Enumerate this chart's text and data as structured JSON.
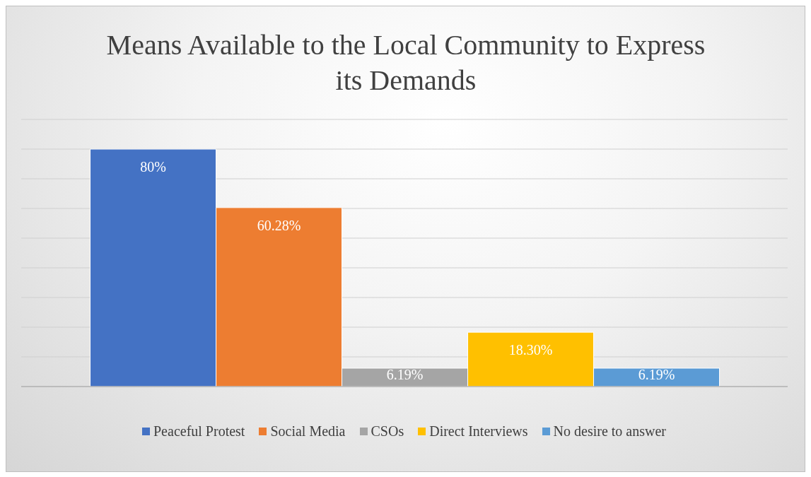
{
  "chart_data": {
    "type": "bar",
    "title": "Means Available to the Local Community to Express its Demands",
    "categories": [
      null
    ],
    "series": [
      {
        "name": "Peaceful Protest",
        "color": "#4472c4",
        "values": [
          80
        ],
        "value_labels": [
          "80%"
        ]
      },
      {
        "name": "Social Media",
        "color": "#ed7d31",
        "values": [
          60.28
        ],
        "value_labels": [
          "60.28%"
        ]
      },
      {
        "name": "CSOs",
        "color": "#a5a5a5",
        "values": [
          6.19
        ],
        "value_labels": [
          "6.19%"
        ]
      },
      {
        "name": "Direct Interviews",
        "color": "#ffc000",
        "values": [
          18.3
        ],
        "value_labels": [
          "18.30%"
        ]
      },
      {
        "name": "No desire to answer",
        "color": "#5b9bd5",
        "values": [
          6.19
        ],
        "value_labels": [
          "6.19%"
        ]
      }
    ],
    "ylim": [
      0,
      90
    ],
    "grid": "y",
    "legend": "bottom"
  }
}
